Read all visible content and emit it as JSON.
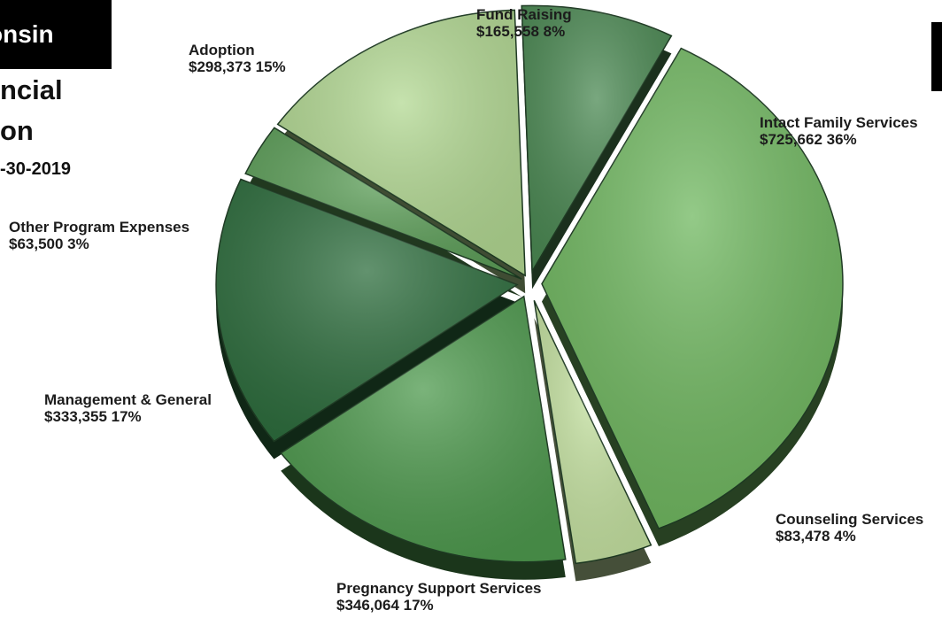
{
  "header": {
    "title_fragment": "onsin",
    "line_1": "ncial",
    "line_2": "on",
    "line_3": "-30-2019"
  },
  "chart_data": {
    "type": "pie",
    "title": "",
    "slices": [
      {
        "label": "Fund Raising",
        "amount": "$165,558",
        "percent": "8%",
        "value": 165558,
        "color": "#4c8a54"
      },
      {
        "label": "Intact Family Services",
        "amount": "$725,662",
        "percent": "36%",
        "value": 725662,
        "color": "#70b860"
      },
      {
        "label": "Counseling Services",
        "amount": "$83,478",
        "percent": "4%",
        "value": 83478,
        "color": "#c6e3a2"
      },
      {
        "label": "Pregnancy Support Services",
        "amount": "$346,064",
        "percent": "17%",
        "value": 346064,
        "color": "#4e9a4e"
      },
      {
        "label": "Management & General",
        "amount": "$333,355",
        "percent": "17%",
        "value": 333355,
        "color": "#2e6e3e"
      },
      {
        "label": "Other Program Expenses",
        "amount": "$63,500",
        "percent": "3%",
        "value": 63500,
        "color": "#5ea05a"
      },
      {
        "label": "Adoption",
        "amount": "$298,373",
        "percent": "15%",
        "value": 298373,
        "color": "#b3d993"
      }
    ]
  }
}
